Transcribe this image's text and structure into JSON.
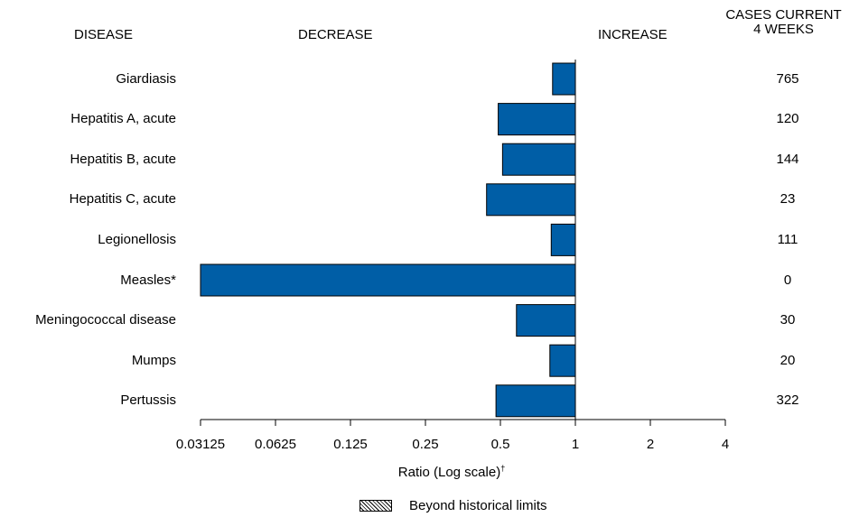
{
  "headers": {
    "disease": "DISEASE",
    "decrease": "DECREASE",
    "increase": "INCREASE",
    "cases_line1": "CASES CURRENT",
    "cases_line2": "4 WEEKS"
  },
  "legend": {
    "label": "Beyond historical limits"
  },
  "colors": {
    "bar": "#005ea6",
    "outline": "#000000"
  },
  "chart_data": {
    "type": "bar",
    "orientation": "horizontal",
    "xscale": "log2",
    "xlim": [
      0.03125,
      4
    ],
    "xlabel": "Ratio (Log scale)",
    "xlabel_mark": "†",
    "xticks": [
      "0.03125",
      "0.0625",
      "0.125",
      "0.25",
      "0.5",
      "1",
      "2",
      "4"
    ],
    "xtick_values": [
      0.03125,
      0.0625,
      0.125,
      0.25,
      0.5,
      1,
      2,
      4
    ],
    "categories": [
      "Giardiasis",
      "Hepatitis A, acute",
      "Hepatitis B, acute",
      "Hepatitis C, acute",
      "Legionellosis",
      "Measles*",
      "Meningococcal disease",
      "Mumps",
      "Pertussis"
    ],
    "values": [
      0.81,
      0.49,
      0.51,
      0.44,
      0.8,
      0.03125,
      0.58,
      0.79,
      0.48
    ],
    "cases": [
      "765",
      "120",
      "144",
      "23",
      "111",
      "0",
      "30",
      "20",
      "322"
    ]
  }
}
